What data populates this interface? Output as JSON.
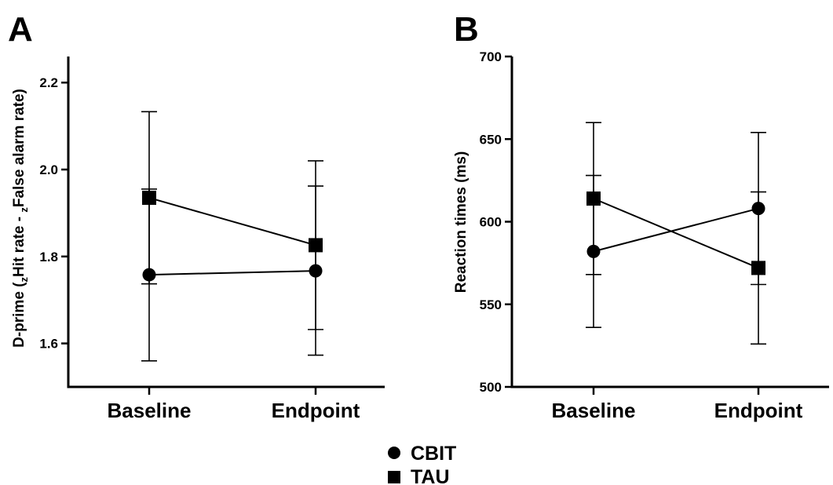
{
  "legend": [
    {
      "name": "CBIT",
      "marker": "circle"
    },
    {
      "name": "TAU",
      "marker": "square"
    }
  ],
  "chart_data": [
    {
      "panel": "A",
      "type": "line",
      "categories": [
        "Baseline",
        "Endpoint"
      ],
      "ylabel_parts": {
        "p1": "D-prime (",
        "s1": "z",
        "p2": "Hit rate - ",
        "s2": "z",
        "p3": "False alarm rate)"
      },
      "ylim": [
        1.5,
        2.26
      ],
      "yticks": [
        1.6,
        1.8,
        2.0,
        2.2
      ],
      "ytick_labels": [
        "1.6",
        "1.8",
        "2.0",
        "2.2"
      ],
      "series": [
        {
          "name": "CBIT",
          "marker": "circle",
          "values": [
            1.758,
            1.767
          ],
          "err_low": [
            1.56,
            1.573
          ],
          "err_high": [
            1.955,
            1.962
          ]
        },
        {
          "name": "TAU",
          "marker": "square",
          "values": [
            1.935,
            1.826
          ],
          "err_low": [
            1.737,
            1.632
          ],
          "err_high": [
            2.133,
            2.02
          ]
        }
      ]
    },
    {
      "panel": "B",
      "type": "line",
      "categories": [
        "Baseline",
        "Endpoint"
      ],
      "ylabel": "Reaction times (ms)",
      "ylim": [
        500,
        700
      ],
      "yticks": [
        500,
        550,
        600,
        650,
        700
      ],
      "ytick_labels": [
        "500",
        "550",
        "600",
        "650",
        "700"
      ],
      "series": [
        {
          "name": "CBIT",
          "marker": "circle",
          "values": [
            582,
            608
          ],
          "err_low": [
            536,
            562
          ],
          "err_high": [
            628,
            654
          ]
        },
        {
          "name": "TAU",
          "marker": "square",
          "values": [
            614,
            572
          ],
          "err_low": [
            568,
            526
          ],
          "err_high": [
            660,
            618
          ]
        }
      ]
    }
  ]
}
